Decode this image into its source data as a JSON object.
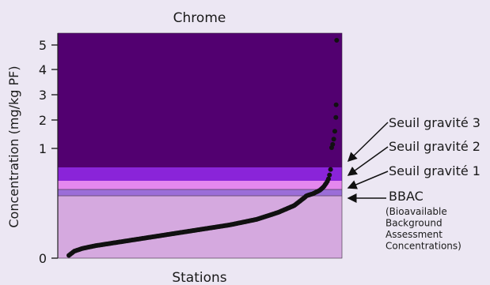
{
  "chart_data": {
    "type": "scatter",
    "title": "Chrome",
    "xlabel": "Stations",
    "ylabel": "Concentration (mg/kg PF)",
    "y_scale": "nonlinear (compressed upper range)",
    "y_ticks": [
      {
        "label": "0",
        "value": 0
      },
      {
        "label": "1",
        "value": 1
      },
      {
        "label": "2",
        "value": 2
      },
      {
        "label": "3",
        "value": 3
      },
      {
        "label": "4",
        "value": 4
      },
      {
        "label": "5",
        "value": 5
      }
    ],
    "zones": [
      {
        "label": "BBAC",
        "sublabel": [
          "(Bioavailable",
          "Background",
          "Assessment",
          "Concentrations)"
        ],
        "color": "#d5a9df"
      },
      {
        "label": "Seuil gravité 1",
        "color": "#9b6dd8"
      },
      {
        "label": "Seuil gravité 2",
        "color": "#e487ee"
      },
      {
        "label": "Seuil gravité 3",
        "color": "#8a24d9"
      },
      {
        "label": "",
        "color": "#520070"
      }
    ],
    "points_description": "Cumulative sorted station concentrations rising from near 0 to above 5 mg/kg",
    "curve": [
      [
        0.0,
        0.02
      ],
      [
        0.02,
        0.05
      ],
      [
        0.05,
        0.07
      ],
      [
        0.1,
        0.09
      ],
      [
        0.2,
        0.12
      ],
      [
        0.3,
        0.15
      ],
      [
        0.4,
        0.18
      ],
      [
        0.5,
        0.21
      ],
      [
        0.6,
        0.24
      ],
      [
        0.7,
        0.28
      ],
      [
        0.78,
        0.33
      ],
      [
        0.84,
        0.38
      ],
      [
        0.88,
        0.44
      ],
      [
        0.91,
        0.5
      ],
      [
        0.935,
        0.58
      ],
      [
        0.95,
        0.66
      ],
      [
        0.96,
        0.74
      ],
      [
        0.97,
        0.84
      ],
      [
        0.975,
        0.92
      ],
      [
        0.98,
        1.05
      ],
      [
        0.985,
        1.2
      ],
      [
        0.99,
        1.5
      ],
      [
        0.993,
        1.8
      ],
      [
        0.995,
        2.1
      ]
    ],
    "outliers": [
      [
        0.996,
        2.6
      ],
      [
        0.998,
        5.2
      ]
    ]
  }
}
